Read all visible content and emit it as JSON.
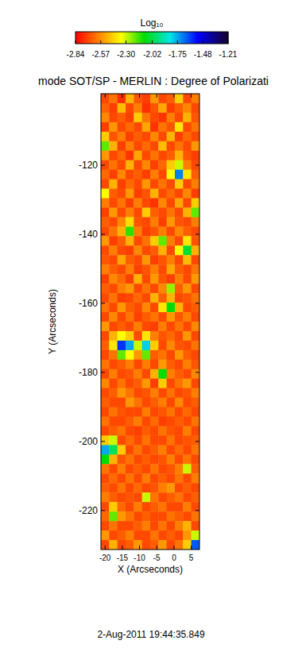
{
  "chart_data": {
    "type": "heatmap",
    "title": "mode SOT/SP - MERLIN : Degree of Polarizati",
    "x_label": "X (Arcseconds)",
    "y_label": "Y (Arcseconds)",
    "annotation": "2-Aug-2011 19:44:35.849",
    "xlim": [
      -21.2,
      7.4
    ],
    "ylim": [
      -231.3,
      -99.3
    ],
    "xticks": [
      -20,
      -15,
      -10,
      -5,
      0,
      5
    ],
    "yticks": [
      -120,
      -140,
      -160,
      -180,
      -200,
      -220
    ],
    "colorbar": {
      "label": "Log₁₀",
      "range": [
        -2.84,
        -1.21
      ],
      "ticks": [
        -2.84,
        -2.57,
        {
          "value": -2.3,
          "label": "-2.30"
        },
        -2.02,
        -1.75,
        -1.48,
        -1.21
      ]
    },
    "cells": [
      [
        -2.7,
        -2.62,
        -2.75,
        -2.5,
        -2.68,
        -2.72,
        -2.55,
        -2.7,
        -2.66,
        -2.45,
        -2.7,
        -2.6
      ],
      [
        -2.65,
        -2.72,
        -2.48,
        -2.7,
        -2.6,
        -2.75,
        -2.68,
        -2.52,
        -2.72,
        -2.66,
        -2.58,
        -2.7
      ],
      [
        -2.58,
        -2.7,
        -2.66,
        -2.72,
        -2.45,
        -2.62,
        -2.7,
        -2.74,
        -2.6,
        -2.7,
        -2.5,
        -2.68
      ],
      [
        -2.72,
        -2.55,
        -2.7,
        -2.64,
        -2.7,
        -2.52,
        -2.74,
        -2.62,
        -2.68,
        -2.4,
        -2.7,
        -2.62
      ],
      [
        -2.45,
        -2.68,
        -2.6,
        -2.72,
        -2.66,
        -2.7,
        -2.58,
        -2.7,
        -2.5,
        -2.72,
        -2.64,
        -2.7
      ],
      [
        -2.2,
        -2.5,
        -2.72,
        -2.6,
        -2.7,
        -2.64,
        -2.7,
        -2.48,
        -2.7,
        -2.62,
        -2.7,
        -2.55
      ],
      [
        -2.55,
        -2.7,
        -2.64,
        -2.74,
        -2.52,
        -2.7,
        -2.62,
        -2.7,
        -2.66,
        -2.5,
        -2.68,
        -2.72
      ],
      [
        -2.7,
        -2.62,
        -2.7,
        -2.5,
        -2.7,
        -2.58,
        -2.72,
        -2.64,
        -2.45,
        -2.3,
        -2.6,
        -2.7
      ],
      [
        -2.64,
        -2.72,
        -2.58,
        -2.7,
        -2.66,
        -2.72,
        -2.6,
        -2.7,
        -2.35,
        -1.7,
        -2.4,
        -2.66
      ],
      [
        -2.7,
        -2.5,
        -2.72,
        -2.64,
        -2.7,
        -2.55,
        -2.7,
        -2.62,
        -2.7,
        -2.45,
        -2.7,
        -2.6
      ],
      [
        -2.35,
        -2.66,
        -2.7,
        -2.55,
        -2.72,
        -2.68,
        -2.5,
        -2.7,
        -2.64,
        -2.7,
        -2.58,
        -2.72
      ],
      [
        -2.6,
        -2.7,
        -2.62,
        -2.72,
        -2.6,
        -2.7,
        -2.74,
        -2.58,
        -2.7,
        -2.52,
        -2.7,
        -2.45
      ],
      [
        -2.72,
        -2.55,
        -2.7,
        -2.6,
        -2.7,
        -2.45,
        -2.66,
        -2.7,
        -2.62,
        -2.7,
        -2.5,
        -2.2
      ],
      [
        -2.66,
        -2.7,
        -2.58,
        -2.42,
        -2.68,
        -2.7,
        -2.6,
        -2.72,
        -2.55,
        -2.68,
        -2.7,
        -2.6
      ],
      [
        -2.7,
        -2.62,
        -2.5,
        -2.15,
        -2.6,
        -2.72,
        -2.68,
        -2.6,
        -2.7,
        -2.58,
        -2.66,
        -2.7
      ],
      [
        -2.55,
        -2.72,
        -2.66,
        -2.5,
        -2.7,
        -2.62,
        -2.45,
        -2.2,
        -2.6,
        -2.7,
        -2.4,
        -2.68
      ],
      [
        -2.7,
        -2.6,
        -2.7,
        -2.72,
        -2.58,
        -2.7,
        -2.66,
        -2.5,
        -2.7,
        -2.35,
        -2.05,
        -2.5
      ],
      [
        -2.68,
        -2.7,
        -2.52,
        -2.66,
        -2.7,
        -2.55,
        -2.72,
        -2.68,
        -2.6,
        -2.7,
        -2.48,
        -2.7
      ],
      [
        -2.6,
        -2.66,
        -2.7,
        -2.6,
        -2.72,
        -2.68,
        -2.6,
        -2.7,
        -2.52,
        -2.66,
        -2.7,
        -2.62
      ],
      [
        -2.72,
        -2.58,
        -2.64,
        -2.72,
        -2.5,
        -2.7,
        -2.55,
        -2.68,
        -2.72,
        -2.6,
        -2.7,
        -2.55
      ],
      [
        -2.66,
        -2.7,
        -2.6,
        -2.55,
        -2.7,
        -2.62,
        -2.7,
        -2.58,
        -2.25,
        -2.66,
        -2.55,
        -2.7
      ],
      [
        -2.7,
        -2.62,
        -2.72,
        -2.7,
        -2.64,
        -2.7,
        -2.5,
        -2.66,
        -2.5,
        -2.7,
        -2.68,
        -2.62
      ],
      [
        -2.62,
        -2.7,
        -2.55,
        -2.66,
        -2.7,
        -2.58,
        -2.7,
        -2.4,
        -2.1,
        -2.5,
        -2.7,
        -2.66
      ],
      [
        -2.7,
        -2.58,
        -2.7,
        -2.62,
        -2.72,
        -2.66,
        -2.62,
        -2.7,
        -2.55,
        -2.68,
        -2.6,
        -2.7
      ],
      [
        -2.55,
        -2.7,
        -2.66,
        -2.7,
        -2.6,
        -2.7,
        -2.72,
        -2.6,
        -2.7,
        -2.62,
        -2.7,
        -2.58
      ],
      [
        -2.7,
        -2.5,
        -2.35,
        -2.45,
        -2.7,
        -2.4,
        -2.6,
        -2.68,
        -2.64,
        -2.7,
        -2.55,
        -2.7
      ],
      [
        -2.66,
        -2.4,
        -1.6,
        -1.75,
        -2.3,
        -1.8,
        -2.45,
        -2.7,
        -2.58,
        -2.68,
        -2.7,
        -2.62
      ],
      [
        -2.7,
        -2.62,
        -2.2,
        -2.35,
        -2.55,
        -2.2,
        -2.66,
        -2.62,
        -2.7,
        -2.55,
        -2.66,
        -2.7
      ],
      [
        -2.62,
        -2.7,
        -2.66,
        -2.6,
        -2.7,
        -2.6,
        -2.7,
        -2.55,
        -2.66,
        -2.7,
        -2.6,
        -2.68
      ],
      [
        -2.7,
        -2.6,
        -2.7,
        -2.68,
        -2.6,
        -2.7,
        -2.5,
        -2.1,
        -2.6,
        -2.66,
        -2.7,
        -2.58
      ],
      [
        -2.58,
        -2.7,
        -2.62,
        -2.7,
        -2.66,
        -2.55,
        -2.72,
        -2.45,
        -2.7,
        -2.62,
        -2.55,
        -2.7
      ],
      [
        -2.7,
        -2.66,
        -2.55,
        -2.62,
        -2.7,
        -2.68,
        -2.6,
        -2.7,
        -2.62,
        -2.7,
        -2.68,
        -2.6
      ],
      [
        -2.66,
        -2.7,
        -2.7,
        -2.55,
        -2.62,
        -2.7,
        -2.66,
        -2.6,
        -2.7,
        -2.58,
        -2.7,
        -2.66
      ],
      [
        -2.7,
        -2.62,
        -2.68,
        -2.7,
        -2.7,
        -2.6,
        -2.7,
        -2.68,
        -2.62,
        -2.7,
        -2.64,
        -2.7
      ],
      [
        -2.62,
        -2.7,
        -2.7,
        -2.66,
        -2.6,
        -2.7,
        -2.64,
        -2.72,
        -2.7,
        -2.66,
        -2.7,
        -2.62
      ],
      [
        -2.7,
        -2.66,
        -2.62,
        -2.7,
        -2.72,
        -2.66,
        -2.7,
        -2.62,
        -2.68,
        -2.7,
        -2.6,
        -2.7
      ],
      [
        -2.45,
        -2.3,
        -2.7,
        -2.64,
        -2.7,
        -2.62,
        -2.7,
        -2.7,
        -2.62,
        -2.7,
        -2.68,
        -2.66
      ],
      [
        -1.75,
        -2.0,
        -2.45,
        -2.7,
        -2.62,
        -2.7,
        -2.66,
        -2.6,
        -2.7,
        -2.64,
        -2.7,
        -2.62
      ],
      [
        -2.1,
        -2.5,
        -2.68,
        -2.62,
        -2.7,
        -2.66,
        -2.7,
        -2.68,
        -2.6,
        -2.7,
        -2.62,
        -2.7
      ],
      [
        -2.62,
        -2.7,
        -2.6,
        -2.7,
        -2.66,
        -2.7,
        -2.62,
        -2.7,
        -2.68,
        -2.6,
        -2.3,
        -2.66
      ],
      [
        -2.7,
        -2.64,
        -2.7,
        -2.62,
        -2.7,
        -2.6,
        -2.7,
        -2.66,
        -2.7,
        -2.62,
        -2.7,
        -2.6
      ],
      [
        -2.66,
        -2.7,
        -2.62,
        -2.7,
        -2.64,
        -2.7,
        -2.68,
        -2.6,
        -2.55,
        -2.7,
        -2.66,
        -2.7
      ],
      [
        -2.6,
        -2.66,
        -2.7,
        -2.68,
        -2.7,
        -2.3,
        -2.62,
        -2.7,
        -2.66,
        -2.62,
        -2.7,
        -2.66
      ],
      [
        -2.7,
        -2.45,
        -2.64,
        -2.7,
        -2.6,
        -2.7,
        -2.66,
        -2.62,
        -2.7,
        -2.7,
        -2.6,
        -2.7
      ],
      [
        -2.64,
        -2.2,
        -2.55,
        -2.62,
        -2.7,
        -2.66,
        -2.7,
        -2.7,
        -2.62,
        -2.66,
        -2.7,
        -2.62
      ],
      [
        -2.7,
        -2.62,
        -2.7,
        -2.7,
        -2.66,
        -2.6,
        -2.7,
        -2.62,
        -2.7,
        -2.6,
        -2.5,
        -2.7
      ],
      [
        -2.55,
        -2.7,
        -2.66,
        -2.6,
        -2.7,
        -2.7,
        -2.62,
        -2.7,
        -2.66,
        -2.7,
        -2.55,
        -2.3
      ],
      [
        -2.7,
        -2.5,
        -2.7,
        -2.66,
        -2.55,
        -2.7,
        -2.66,
        -2.55,
        -2.7,
        -2.62,
        -2.45,
        -1.65
      ]
    ]
  }
}
